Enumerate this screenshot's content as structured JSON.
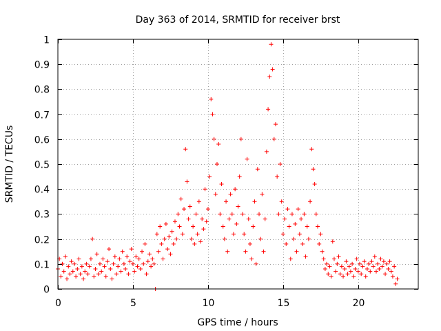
{
  "chart_data": {
    "type": "scatter",
    "title": "Day 363 of 2014, SRMTID for receiver brst",
    "xlabel": "GPS time / hours",
    "ylabel": "SRMTID / TECUs",
    "xlim": [
      0,
      24
    ],
    "ylim": [
      0,
      1
    ],
    "xticks": [
      0,
      5,
      10,
      15,
      20
    ],
    "xtick_labels": [
      "0",
      "5",
      "10",
      "15",
      "20"
    ],
    "yticks": [
      0,
      0.1,
      0.2,
      0.3,
      0.4,
      0.5,
      0.6,
      0.7,
      0.8,
      0.9,
      1
    ],
    "ytick_labels": [
      "0",
      "0.1",
      "0.2",
      "0.3",
      "0.4",
      "0.5",
      "0.6",
      "0.7",
      "0.8",
      "0.9",
      "1"
    ],
    "grid": true,
    "marker": "+",
    "series_color": "#ff0000",
    "series": [
      {
        "name": "SRMTID",
        "points": [
          [
            0.0,
            0.08
          ],
          [
            0.1,
            0.12
          ],
          [
            0.2,
            0.05
          ],
          [
            0.3,
            0.1
          ],
          [
            0.4,
            0.07
          ],
          [
            0.5,
            0.13
          ],
          [
            0.6,
            0.04
          ],
          [
            0.7,
            0.09
          ],
          [
            0.8,
            0.06
          ],
          [
            0.9,
            0.11
          ],
          [
            1.0,
            0.07
          ],
          [
            1.1,
            0.1
          ],
          [
            1.2,
            0.05
          ],
          [
            1.3,
            0.08
          ],
          [
            1.4,
            0.12
          ],
          [
            1.5,
            0.06
          ],
          [
            1.6,
            0.09
          ],
          [
            1.7,
            0.04
          ],
          [
            1.8,
            0.07
          ],
          [
            1.9,
            0.1
          ],
          [
            2.0,
            0.06
          ],
          [
            2.1,
            0.09
          ],
          [
            2.2,
            0.12
          ],
          [
            2.3,
            0.2
          ],
          [
            2.4,
            0.05
          ],
          [
            2.5,
            0.08
          ],
          [
            2.6,
            0.14
          ],
          [
            2.7,
            0.06
          ],
          [
            2.8,
            0.1
          ],
          [
            2.9,
            0.07
          ],
          [
            3.0,
            0.12
          ],
          [
            3.1,
            0.09
          ],
          [
            3.2,
            0.05
          ],
          [
            3.3,
            0.11
          ],
          [
            3.4,
            0.16
          ],
          [
            3.5,
            0.08
          ],
          [
            3.6,
            0.04
          ],
          [
            3.7,
            0.1
          ],
          [
            3.8,
            0.13
          ],
          [
            3.9,
            0.06
          ],
          [
            4.0,
            0.09
          ],
          [
            4.1,
            0.12
          ],
          [
            4.2,
            0.07
          ],
          [
            4.3,
            0.15
          ],
          [
            4.4,
            0.1
          ],
          [
            4.5,
            0.08
          ],
          [
            4.6,
            0.13
          ],
          [
            4.7,
            0.06
          ],
          [
            4.8,
            0.11
          ],
          [
            4.9,
            0.16
          ],
          [
            5.0,
            0.1
          ],
          [
            5.1,
            0.07
          ],
          [
            5.2,
            0.13
          ],
          [
            5.3,
            0.09
          ],
          [
            5.4,
            0.12
          ],
          [
            5.5,
            0.08
          ],
          [
            5.6,
            0.15
          ],
          [
            5.7,
            0.1
          ],
          [
            5.8,
            0.18
          ],
          [
            5.9,
            0.06
          ],
          [
            6.0,
            0.11
          ],
          [
            6.1,
            0.14
          ],
          [
            6.2,
            0.09
          ],
          [
            6.3,
            0.12
          ],
          [
            6.4,
            0.1
          ],
          [
            6.5,
            0.0
          ],
          [
            6.6,
            0.22
          ],
          [
            6.7,
            0.15
          ],
          [
            6.8,
            0.25
          ],
          [
            6.9,
            0.18
          ],
          [
            7.0,
            0.12
          ],
          [
            7.1,
            0.2
          ],
          [
            7.2,
            0.26
          ],
          [
            7.3,
            0.16
          ],
          [
            7.4,
            0.21
          ],
          [
            7.5,
            0.14
          ],
          [
            7.6,
            0.23
          ],
          [
            7.7,
            0.18
          ],
          [
            7.8,
            0.27
          ],
          [
            7.9,
            0.2
          ],
          [
            8.0,
            0.3
          ],
          [
            8.1,
            0.25
          ],
          [
            8.2,
            0.36
          ],
          [
            8.3,
            0.22
          ],
          [
            8.4,
            0.32
          ],
          [
            8.5,
            0.56
          ],
          [
            8.6,
            0.43
          ],
          [
            8.7,
            0.28
          ],
          [
            8.8,
            0.33
          ],
          [
            8.9,
            0.2
          ],
          [
            9.0,
            0.25
          ],
          [
            9.1,
            0.18
          ],
          [
            9.2,
            0.3
          ],
          [
            9.3,
            0.22
          ],
          [
            9.4,
            0.35
          ],
          [
            9.5,
            0.19
          ],
          [
            9.6,
            0.28
          ],
          [
            9.7,
            0.24
          ],
          [
            9.8,
            0.4
          ],
          [
            9.9,
            0.27
          ],
          [
            10.0,
            0.32
          ],
          [
            10.1,
            0.45
          ],
          [
            10.2,
            0.76
          ],
          [
            10.3,
            0.7
          ],
          [
            10.4,
            0.6
          ],
          [
            10.5,
            0.38
          ],
          [
            10.6,
            0.5
          ],
          [
            10.7,
            0.58
          ],
          [
            10.8,
            0.3
          ],
          [
            10.9,
            0.42
          ],
          [
            11.0,
            0.25
          ],
          [
            11.1,
            0.2
          ],
          [
            11.2,
            0.35
          ],
          [
            11.3,
            0.15
          ],
          [
            11.4,
            0.28
          ],
          [
            11.5,
            0.38
          ],
          [
            11.6,
            0.3
          ],
          [
            11.7,
            0.22
          ],
          [
            11.8,
            0.4
          ],
          [
            11.9,
            0.26
          ],
          [
            12.0,
            0.33
          ],
          [
            12.1,
            0.45
          ],
          [
            12.2,
            0.6
          ],
          [
            12.3,
            0.3
          ],
          [
            12.4,
            0.22
          ],
          [
            12.5,
            0.15
          ],
          [
            12.6,
            0.52
          ],
          [
            12.7,
            0.28
          ],
          [
            12.8,
            0.18
          ],
          [
            12.9,
            0.12
          ],
          [
            13.0,
            0.25
          ],
          [
            13.1,
            0.35
          ],
          [
            13.2,
            0.1
          ],
          [
            13.3,
            0.48
          ],
          [
            13.4,
            0.3
          ],
          [
            13.5,
            0.2
          ],
          [
            13.6,
            0.38
          ],
          [
            13.7,
            0.15
          ],
          [
            13.8,
            0.28
          ],
          [
            13.9,
            0.55
          ],
          [
            14.0,
            0.72
          ],
          [
            14.1,
            0.85
          ],
          [
            14.2,
            0.98
          ],
          [
            14.3,
            0.88
          ],
          [
            14.4,
            0.6
          ],
          [
            14.5,
            0.66
          ],
          [
            14.6,
            0.45
          ],
          [
            14.7,
            0.3
          ],
          [
            14.8,
            0.5
          ],
          [
            14.9,
            0.35
          ],
          [
            15.0,
            0.22
          ],
          [
            15.1,
            0.28
          ],
          [
            15.2,
            0.18
          ],
          [
            15.3,
            0.32
          ],
          [
            15.4,
            0.25
          ],
          [
            15.5,
            0.12
          ],
          [
            15.6,
            0.3
          ],
          [
            15.7,
            0.2
          ],
          [
            15.8,
            0.26
          ],
          [
            15.9,
            0.15
          ],
          [
            16.0,
            0.32
          ],
          [
            16.1,
            0.22
          ],
          [
            16.2,
            0.28
          ],
          [
            16.3,
            0.18
          ],
          [
            16.4,
            0.3
          ],
          [
            16.5,
            0.13
          ],
          [
            16.6,
            0.25
          ],
          [
            16.7,
            0.2
          ],
          [
            16.8,
            0.35
          ],
          [
            16.9,
            0.56
          ],
          [
            17.0,
            0.48
          ],
          [
            17.1,
            0.42
          ],
          [
            17.2,
            0.3
          ],
          [
            17.3,
            0.25
          ],
          [
            17.4,
            0.18
          ],
          [
            17.5,
            0.22
          ],
          [
            17.6,
            0.15
          ],
          [
            17.7,
            0.12
          ],
          [
            17.8,
            0.08
          ],
          [
            17.9,
            0.1
          ],
          [
            18.0,
            0.06
          ],
          [
            18.1,
            0.09
          ],
          [
            18.2,
            0.05
          ],
          [
            18.3,
            0.19
          ],
          [
            18.4,
            0.12
          ],
          [
            18.5,
            0.07
          ],
          [
            18.6,
            0.1
          ],
          [
            18.7,
            0.13
          ],
          [
            18.8,
            0.06
          ],
          [
            18.9,
            0.09
          ],
          [
            19.0,
            0.05
          ],
          [
            19.1,
            0.08
          ],
          [
            19.2,
            0.11
          ],
          [
            19.3,
            0.06
          ],
          [
            19.4,
            0.09
          ],
          [
            19.5,
            0.07
          ],
          [
            19.6,
            0.1
          ],
          [
            19.7,
            0.05
          ],
          [
            19.8,
            0.08
          ],
          [
            19.9,
            0.12
          ],
          [
            20.0,
            0.07
          ],
          [
            20.1,
            0.1
          ],
          [
            20.2,
            0.06
          ],
          [
            20.3,
            0.09
          ],
          [
            20.4,
            0.11
          ],
          [
            20.5,
            0.05
          ],
          [
            20.6,
            0.08
          ],
          [
            20.7,
            0.1
          ],
          [
            20.8,
            0.07
          ],
          [
            20.9,
            0.11
          ],
          [
            21.0,
            0.09
          ],
          [
            21.1,
            0.13
          ],
          [
            21.2,
            0.07
          ],
          [
            21.3,
            0.1
          ],
          [
            21.4,
            0.08
          ],
          [
            21.5,
            0.12
          ],
          [
            21.6,
            0.09
          ],
          [
            21.7,
            0.11
          ],
          [
            21.8,
            0.06
          ],
          [
            21.9,
            0.1
          ],
          [
            22.0,
            0.08
          ],
          [
            22.1,
            0.11
          ],
          [
            22.2,
            0.07
          ],
          [
            22.3,
            0.05
          ],
          [
            22.4,
            0.09
          ],
          [
            22.5,
            0.02
          ],
          [
            22.6,
            0.04
          ]
        ]
      }
    ]
  }
}
